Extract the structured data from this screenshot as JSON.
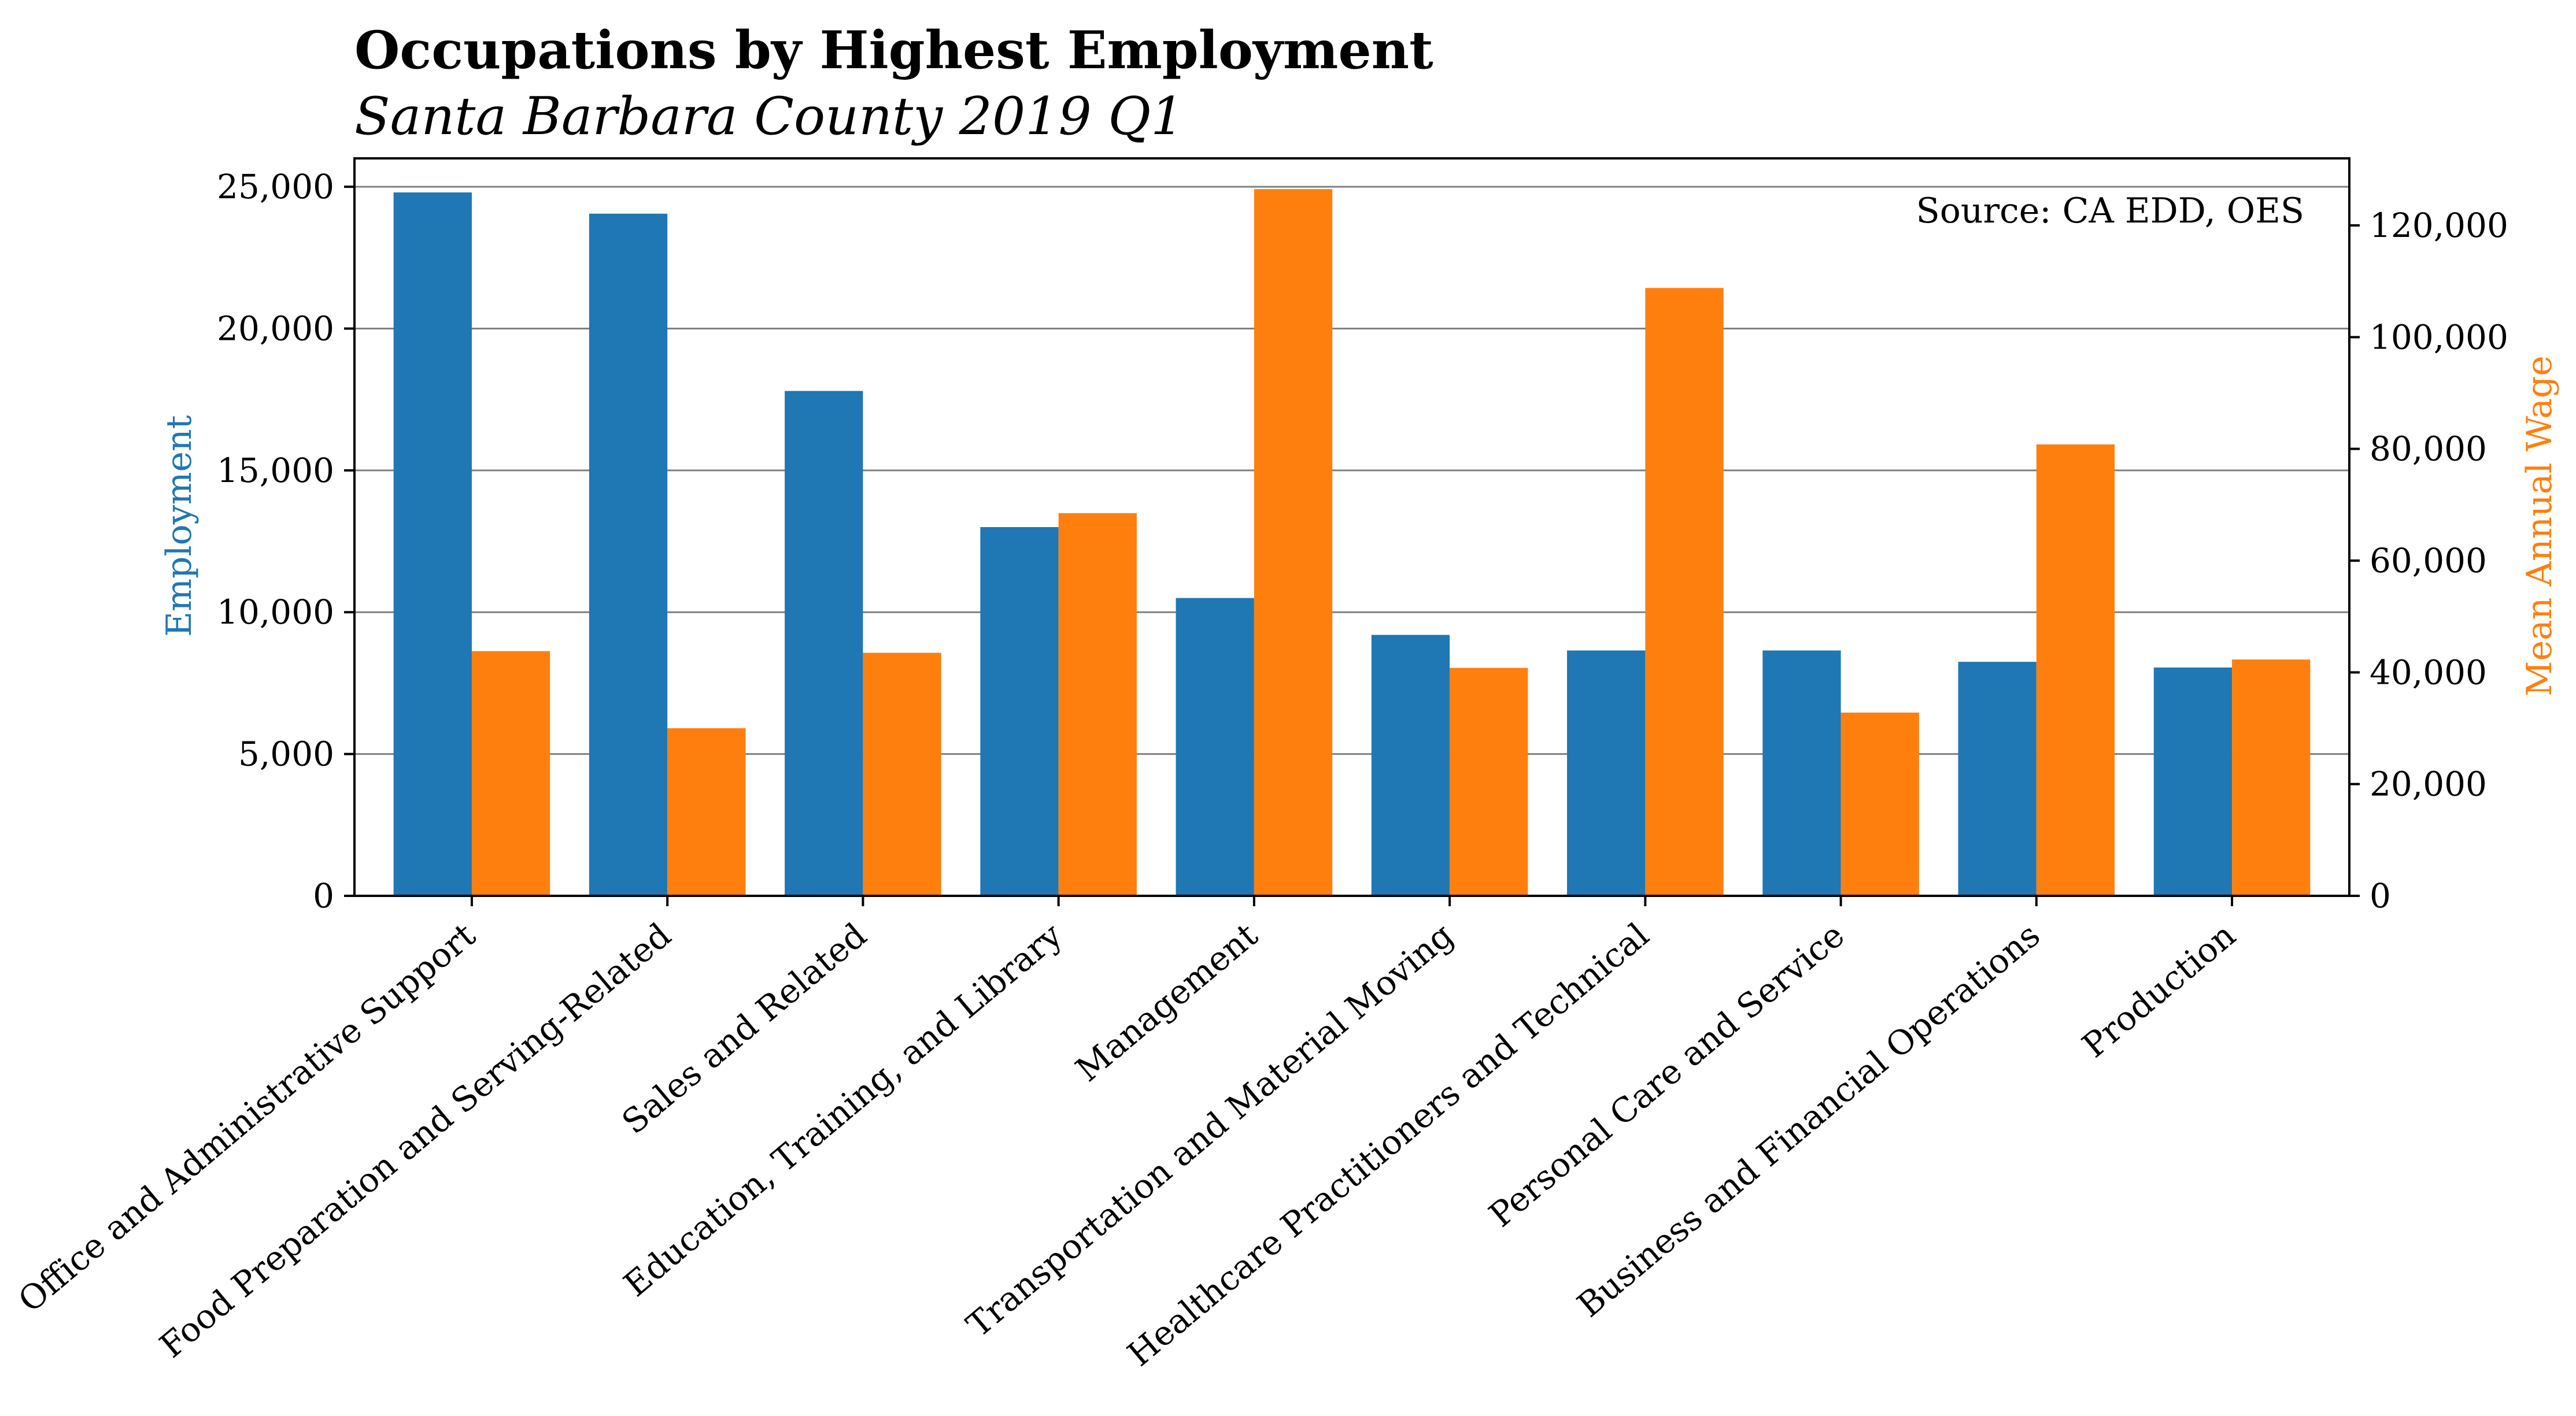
{
  "chart_data": {
    "type": "bar",
    "title": "Occupations by Highest Employment",
    "subtitle": "Santa Barbara County 2019 Q1",
    "annotation": "Source: CA EDD, OES",
    "ylabel_left": "Employment",
    "ylabel_right": "Mean Annual Wage",
    "y_left_lim": [
      0,
      26000
    ],
    "y_right_lim": [
      0,
      132000
    ],
    "y_left_ticks": [
      0,
      5000,
      10000,
      15000,
      20000,
      25000
    ],
    "y_left_tick_labels": [
      "0",
      "5,000",
      "10,000",
      "15,000",
      "20,000",
      "25,000"
    ],
    "y_right_ticks": [
      0,
      20000,
      40000,
      60000,
      80000,
      100000,
      120000
    ],
    "y_right_tick_labels": [
      "0",
      "20,000",
      "40,000",
      "60,000",
      "80,000",
      "100,000",
      "120,000"
    ],
    "grid": "horizontal, left axis",
    "categories": [
      "Office and Administrative Support",
      "Food Preparation and Serving-Related",
      "Sales and Related",
      "Education, Training, and Library",
      "Management",
      "Transportation and Material Moving",
      "Healthcare Practitioners and Technical",
      "Personal Care and Service",
      "Business and Financial Operations",
      "Production"
    ],
    "series": [
      {
        "axis": "left",
        "color": "#1f77b4",
        "values": [
          24800,
          24050,
          17800,
          13000,
          10500,
          9200,
          8650,
          8650,
          8250,
          8050
        ]
      },
      {
        "axis": "right",
        "color": "#ff7f0e",
        "values": [
          43800,
          30000,
          43500,
          68500,
          126500,
          40800,
          108800,
          32800,
          80800,
          42300
        ]
      }
    ]
  }
}
